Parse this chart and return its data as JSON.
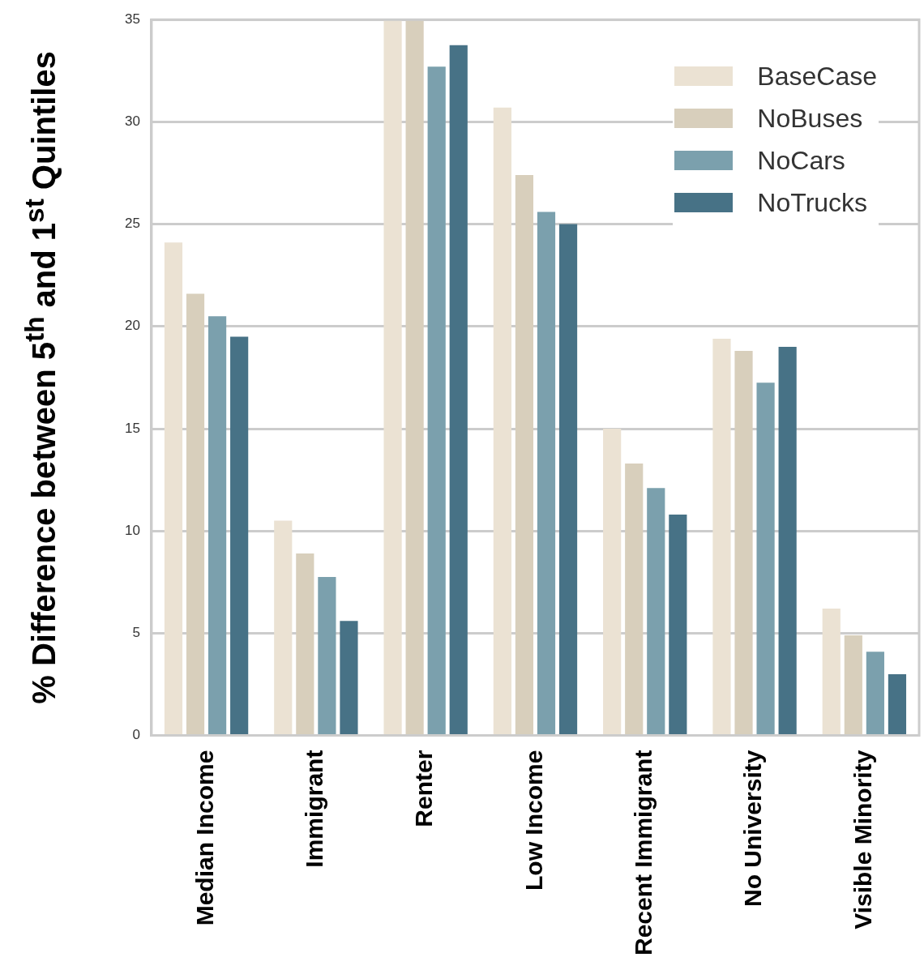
{
  "chart_data": {
    "type": "bar",
    "ylabel": "% Difference between 5$^{th}$ and 1$^{st}$ Quintiles",
    "categories": [
      "Median Income",
      "Immigrant",
      "Renter",
      "Low Income",
      "Recent Immigrant",
      "No University",
      "Visible Minority"
    ],
    "series": [
      {
        "name": "BaseCase",
        "color": "#ebe2d3",
        "values": [
          24.1,
          10.5,
          35,
          30.7,
          15.0,
          19.4,
          6.2
        ]
      },
      {
        "name": "NoBuses",
        "color": "#d8cfbc",
        "values": [
          21.6,
          8.9,
          35,
          27.4,
          13.3,
          18.8,
          4.9
        ]
      },
      {
        "name": "NoCars",
        "color": "#7ba0ad",
        "values": [
          20.5,
          7.75,
          32.7,
          25.6,
          12.1,
          17.25,
          4.1
        ]
      },
      {
        "name": "NoTrucks",
        "color": "#477286",
        "values": [
          19.5,
          5.6,
          33.75,
          25.0,
          10.8,
          19.0,
          3.0
        ]
      }
    ],
    "ylim": [
      0,
      35
    ],
    "yticks": [
      0,
      5,
      10,
      15,
      20,
      25,
      30,
      35
    ],
    "grid": "y",
    "legend": "top right"
  }
}
